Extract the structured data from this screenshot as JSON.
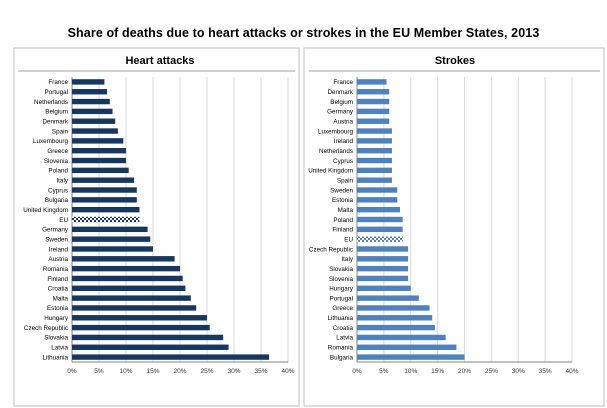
{
  "title": "Share of deaths due to heart attacks or strokes in the EU Member States, 2013",
  "colors": {
    "heart": "#17375e",
    "stroke": "#4f81bd",
    "grid": "#d9d9d9",
    "axis": "#868686",
    "panel_border": "#bfbfbf",
    "divider": "#a6a6a6"
  },
  "chart_data": [
    {
      "type": "bar",
      "orientation": "horizontal",
      "title": "Heart attacks",
      "categories": [
        "France",
        "Portugal",
        "Netherlands",
        "Belgium",
        "Denmark",
        "Spain",
        "Luxembourg",
        "Greece",
        "Slovenia",
        "Poland",
        "Italy",
        "Cyprus",
        "Bulgaria",
        "United Kingdom",
        "EU",
        "Germany",
        "Sweden",
        "Ireland",
        "Austria",
        "Romania",
        "Finland",
        "Croatia",
        "Malta",
        "Estonia",
        "Hungary",
        "Czech Republic",
        "Slovakia",
        "Latvia",
        "Lithuania"
      ],
      "values": [
        6,
        6.5,
        7,
        7.5,
        8,
        8.5,
        9.5,
        10,
        10,
        10.5,
        11.5,
        12,
        12,
        12.5,
        12.5,
        14,
        14.5,
        15,
        19,
        20,
        20.5,
        21,
        22,
        23,
        25,
        25.5,
        28,
        29,
        36.5
      ],
      "highlight": "EU",
      "xlim": [
        0,
        40
      ],
      "xticks": [
        "0%",
        "5%",
        "10%",
        "15%",
        "20%",
        "25%",
        "30%",
        "35%",
        "40%"
      ],
      "grid": true
    },
    {
      "type": "bar",
      "orientation": "horizontal",
      "title": "Strokes",
      "categories": [
        "France",
        "Denmark",
        "Belgium",
        "Germany",
        "Austria",
        "Luxembourg",
        "Ireland",
        "Netherlands",
        "Cyprus",
        "United Kingdom",
        "Spain",
        "Sweden",
        "Estonia",
        "Malta",
        "Poland",
        "Finland",
        "EU",
        "Czech Republic",
        "Italy",
        "Slovakia",
        "Slovenia",
        "Hungary",
        "Portugal",
        "Greece",
        "Lithuania",
        "Croatia",
        "Latvia",
        "Romania",
        "Bulgaria"
      ],
      "values": [
        5.5,
        6,
        6,
        6,
        6,
        6.5,
        6.5,
        6.5,
        6.5,
        6.5,
        6.5,
        7.5,
        7.5,
        8,
        8.5,
        8.5,
        8.5,
        9.5,
        9.5,
        9.5,
        9.5,
        10,
        11.5,
        13.5,
        14,
        14.5,
        16.5,
        18.5,
        20
      ],
      "highlight": "EU",
      "xlim": [
        0,
        40
      ],
      "xticks": [
        "0%",
        "5%",
        "10%",
        "15%",
        "20%",
        "25%",
        "30%",
        "35%",
        "40%"
      ],
      "grid": true
    }
  ]
}
